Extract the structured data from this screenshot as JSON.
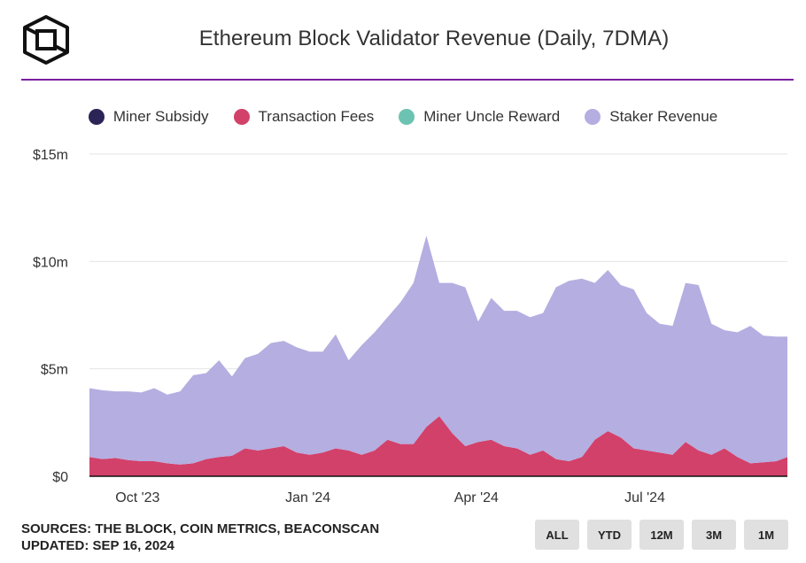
{
  "header": {
    "title": "Ethereum Block Validator Revenue (Daily, 7DMA)"
  },
  "chart_data": {
    "type": "area",
    "stacked": true,
    "grid": true,
    "legend_position": "top",
    "x": [
      "2023-09-05",
      "2023-09-12",
      "2023-09-19",
      "2023-09-26",
      "2023-10-03",
      "2023-10-10",
      "2023-10-17",
      "2023-10-24",
      "2023-10-31",
      "2023-11-07",
      "2023-11-14",
      "2023-11-21",
      "2023-11-28",
      "2023-12-05",
      "2023-12-12",
      "2023-12-19",
      "2023-12-26",
      "2024-01-02",
      "2024-01-09",
      "2024-01-16",
      "2024-01-23",
      "2024-01-30",
      "2024-02-06",
      "2024-02-13",
      "2024-02-20",
      "2024-02-27",
      "2024-03-05",
      "2024-03-12",
      "2024-03-19",
      "2024-03-26",
      "2024-04-02",
      "2024-04-09",
      "2024-04-16",
      "2024-04-23",
      "2024-04-30",
      "2024-05-07",
      "2024-05-14",
      "2024-05-21",
      "2024-05-28",
      "2024-06-04",
      "2024-06-11",
      "2024-06-18",
      "2024-06-25",
      "2024-07-02",
      "2024-07-09",
      "2024-07-16",
      "2024-07-23",
      "2024-07-30",
      "2024-08-06",
      "2024-08-13",
      "2024-08-20",
      "2024-08-27",
      "2024-09-03",
      "2024-09-10",
      "2024-09-16"
    ],
    "series": [
      {
        "name": "Miner Subsidy",
        "color": "#2a2556",
        "values": [
          0,
          0,
          0,
          0,
          0,
          0,
          0,
          0,
          0,
          0,
          0,
          0,
          0,
          0,
          0,
          0,
          0,
          0,
          0,
          0,
          0,
          0,
          0,
          0,
          0,
          0,
          0,
          0,
          0,
          0,
          0,
          0,
          0,
          0,
          0,
          0,
          0,
          0,
          0,
          0,
          0,
          0,
          0,
          0,
          0,
          0,
          0,
          0,
          0,
          0,
          0,
          0,
          0,
          0,
          0
        ]
      },
      {
        "name": "Transaction Fees",
        "color": "#d2416a",
        "values": [
          0.9,
          0.8,
          0.85,
          0.75,
          0.7,
          0.7,
          0.6,
          0.55,
          0.6,
          0.8,
          0.9,
          0.95,
          1.3,
          1.2,
          1.3,
          1.4,
          1.1,
          1.0,
          1.1,
          1.3,
          1.2,
          1.0,
          1.2,
          1.7,
          1.5,
          1.5,
          2.3,
          2.8,
          2.0,
          1.4,
          1.6,
          1.7,
          1.4,
          1.3,
          1.0,
          1.2,
          0.8,
          0.7,
          0.9,
          1.7,
          2.1,
          1.8,
          1.3,
          1.2,
          1.1,
          1.0,
          1.6,
          1.2,
          1.0,
          1.3,
          0.9,
          0.6,
          0.65,
          0.7,
          0.9
        ]
      },
      {
        "name": "Miner Uncle Reward",
        "color": "#6cc3b1",
        "values": [
          0,
          0,
          0,
          0,
          0,
          0,
          0,
          0,
          0,
          0,
          0,
          0,
          0,
          0,
          0,
          0,
          0,
          0,
          0,
          0,
          0,
          0,
          0,
          0,
          0,
          0,
          0,
          0,
          0,
          0,
          0,
          0,
          0,
          0,
          0,
          0,
          0,
          0,
          0,
          0,
          0,
          0,
          0,
          0,
          0,
          0,
          0,
          0,
          0,
          0,
          0,
          0,
          0,
          0,
          0
        ]
      },
      {
        "name": "Staker Revenue",
        "color": "#b4aee1",
        "values": [
          3.2,
          3.2,
          3.1,
          3.2,
          3.2,
          3.4,
          3.2,
          3.4,
          4.1,
          4.0,
          4.5,
          3.7,
          4.2,
          4.5,
          4.9,
          4.9,
          4.9,
          4.8,
          4.7,
          5.3,
          4.2,
          5.1,
          5.5,
          5.7,
          6.6,
          7.5,
          8.9,
          6.2,
          7.0,
          7.4,
          5.6,
          6.6,
          6.3,
          6.4,
          6.4,
          6.4,
          8.0,
          8.4,
          8.3,
          7.3,
          7.5,
          7.1,
          7.4,
          6.4,
          6.0,
          6.0,
          7.4,
          7.7,
          6.1,
          5.5,
          5.8,
          6.4,
          5.9,
          5.8,
          5.6
        ]
      }
    ],
    "y_ticks": [
      "$15m",
      "$10m",
      "$5m",
      "$0"
    ],
    "ylim": [
      0,
      15
    ],
    "x_ticks": [
      {
        "label": "Oct '23",
        "date": "2023-10-01"
      },
      {
        "label": "Jan '24",
        "date": "2024-01-01"
      },
      {
        "label": "Apr '24",
        "date": "2024-04-01"
      },
      {
        "label": "Jul '24",
        "date": "2024-07-01"
      }
    ]
  },
  "footer": {
    "sources": "SOURCES: THE BLOCK, COIN METRICS, BEACONSCAN",
    "updated": "UPDATED: SEP 16, 2024"
  },
  "range_buttons": [
    "ALL",
    "YTD",
    "12M",
    "3M",
    "1M"
  ]
}
